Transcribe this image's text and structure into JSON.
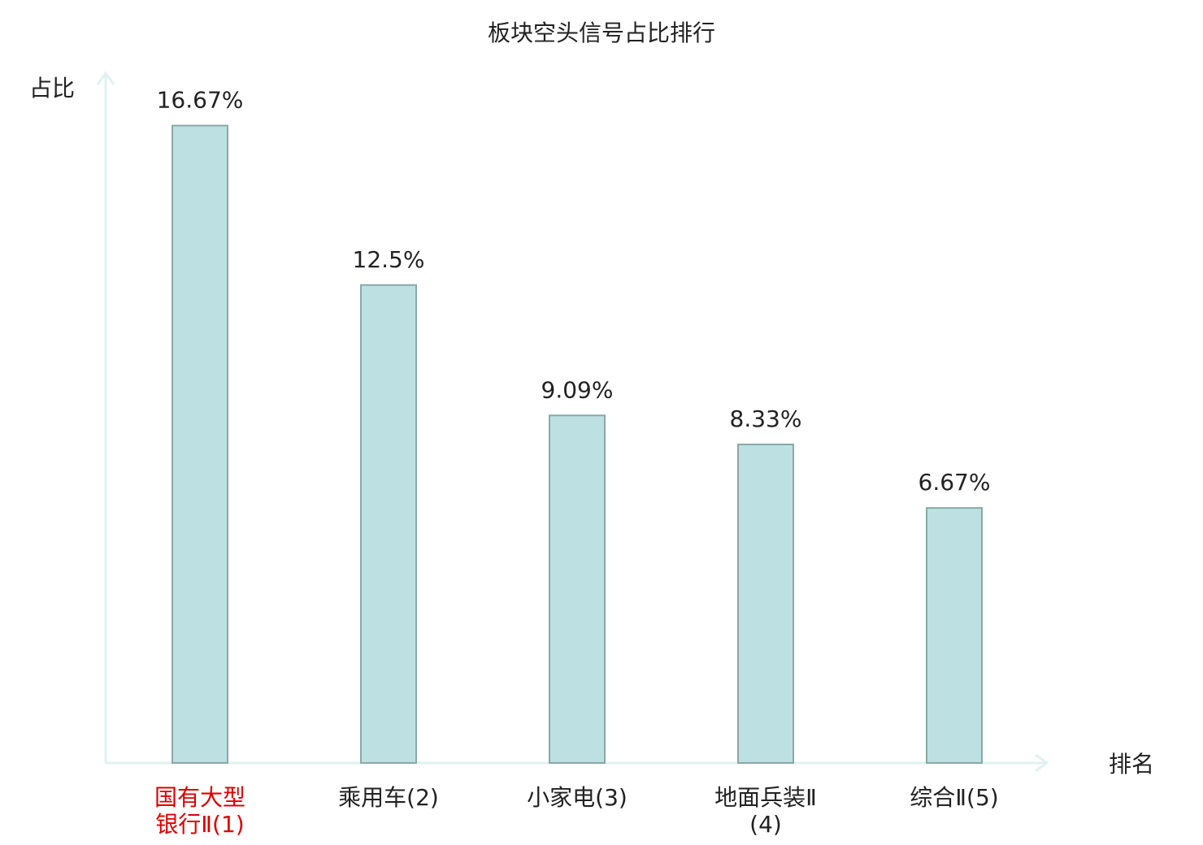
{
  "chart_data": {
    "type": "bar",
    "title": "板块空头信号占比排行",
    "y_label": "占比",
    "x_label": "排名",
    "categories": [
      "国有大型银行Ⅱ(1)",
      "乘用车(2)",
      "小家电(3)",
      "地面兵装Ⅱ(4)",
      "综合Ⅱ(5)"
    ],
    "values": [
      16.67,
      12.5,
      9.09,
      8.33,
      6.67
    ],
    "value_labels": [
      "16.67%",
      "12.5%",
      "9.09%",
      "8.33%",
      "6.67%"
    ],
    "color": "#bde0e2",
    "edge_color": "#8aa8a8",
    "highlight_index": 0,
    "highlight_color": "#e00000",
    "ylim": [
      0,
      18
    ]
  }
}
